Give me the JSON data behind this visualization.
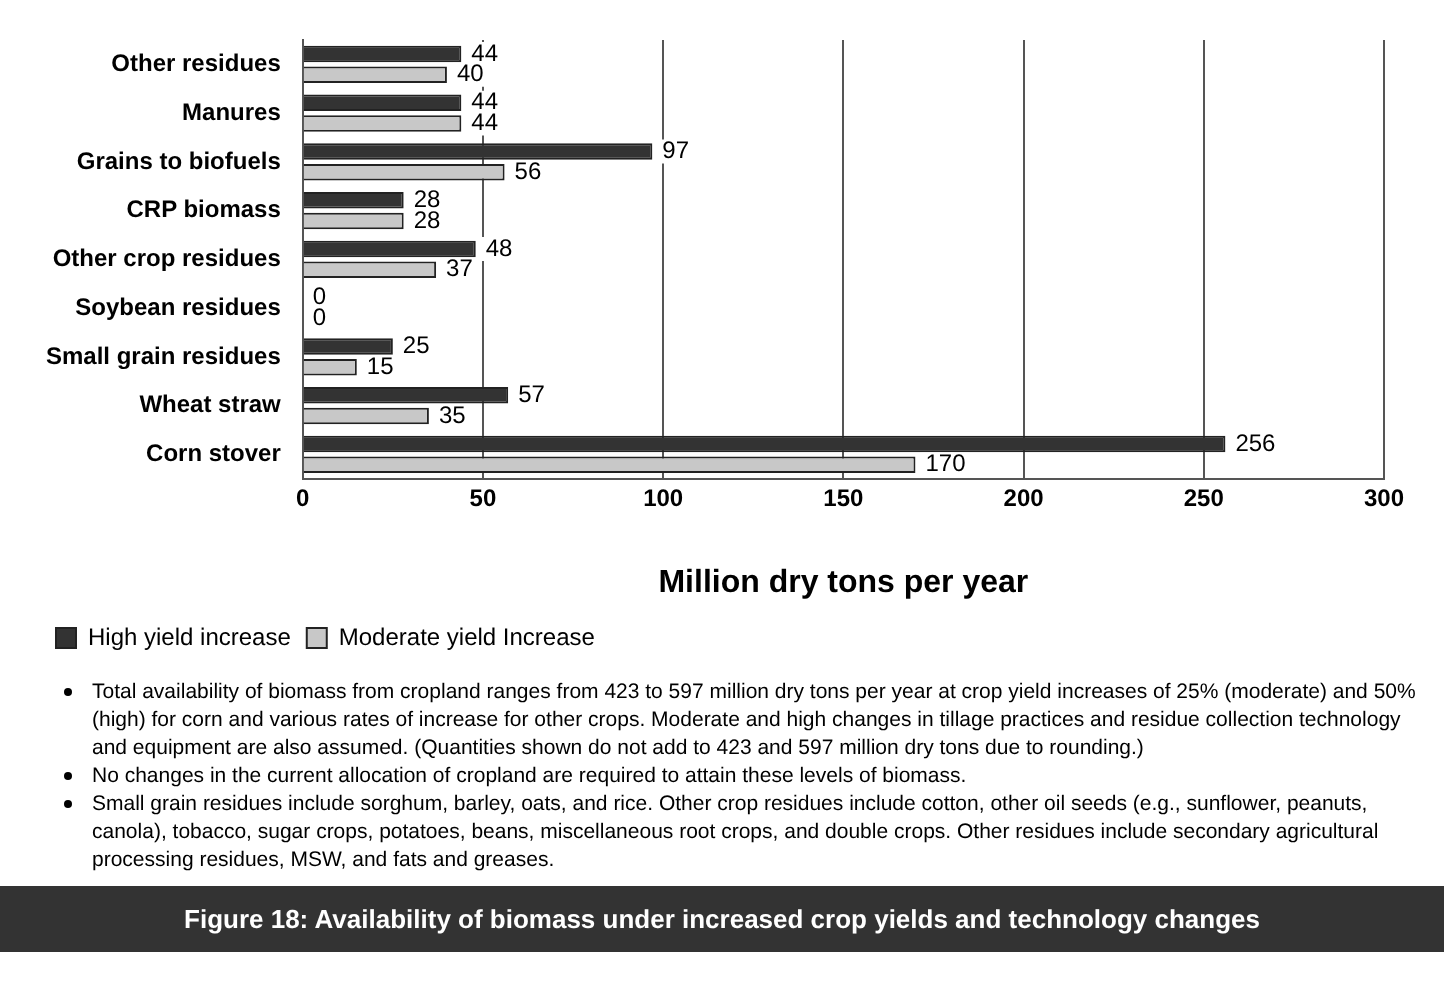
{
  "chart_data": {
    "type": "bar",
    "orientation": "horizontal",
    "title": "Figure 18: Availability of biomass under increased  crop yields and technology changes",
    "xlabel": "Million dry tons per year",
    "categories": [
      "Other residues",
      "Manures",
      "Grains to biofuels",
      "CRP biomass",
      "Other crop residues",
      "Soybean residues",
      "Small grain residues",
      "Wheat straw",
      "Corn stover"
    ],
    "series": [
      {
        "name": "High yield increase",
        "color": "#333333",
        "values": [
          44,
          44,
          97,
          28,
          48,
          0,
          25,
          57,
          256
        ]
      },
      {
        "name": "Moderate yield Increase",
        "color": "#c8c8c8",
        "values": [
          40,
          44,
          56,
          28,
          37,
          0,
          15,
          35,
          170
        ]
      }
    ],
    "xlim": [
      0,
      300
    ],
    "xticks": [
      0,
      50,
      100,
      150,
      200,
      250,
      300
    ],
    "grid": "x",
    "legend": "bottom left",
    "data_labels": true,
    "annotations": [
      "Total availability of biomass from cropland ranges from 423 to 597 million dry tons per year at crop yield increases of 25% (moderate) and 50% (high) for corn and various rates of increase for other crops. Moderate and high changes in tillage practices and residue collection technology and equipment are also assumed. (Quantities shown do not add to 423 and 597 million dry tons due to rounding.)",
      "No changes in the current allocation of cropland are required to attain these levels of biomass.",
      "Small grain residues include sorghum, barley, oats, and rice. Other crop residues include cotton, other oil seeds (e.g., sunflower, peanuts, canola), tobacco, sugar crops, potatoes, beans, miscellaneous root crops, and double crops. Other residues include secondary agricultural processing residues, MSW, and fats and greases."
    ]
  }
}
